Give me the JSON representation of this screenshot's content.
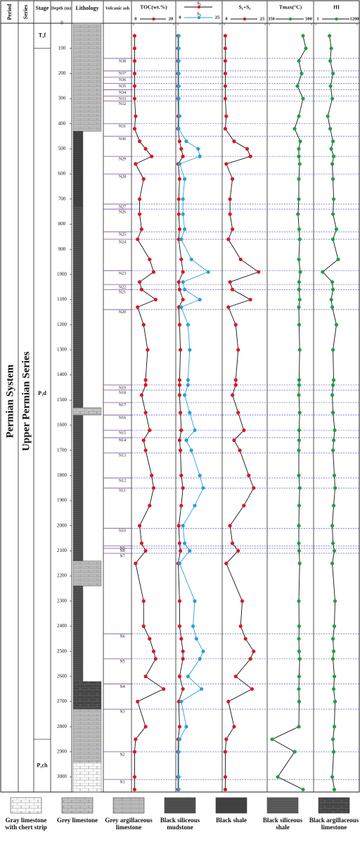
{
  "chart_data": {
    "type": "well-log",
    "headers": {
      "period": "Period",
      "series": "Series",
      "stage": "Stage",
      "depth": "Depth (m)",
      "lithology": "Lithology",
      "ash": "Volcanic ash"
    },
    "period": "Permian System",
    "series_name": "Upper Permian Series",
    "stages": [
      {
        "label": "T₁f",
        "top": 0,
        "base": 100
      },
      {
        "label": "P₃d",
        "top": 100,
        "base": 2850
      },
      {
        "label": "P₃ch",
        "top": 2850,
        "base": 3060
      }
    ],
    "ylim": [
      0,
      3060
    ],
    "yticks": [
      0,
      100,
      200,
      300,
      400,
      500,
      600,
      700,
      800,
      900,
      1000,
      1100,
      1200,
      1300,
      1400,
      1500,
      1600,
      1700,
      1800,
      1900,
      2000,
      2100,
      2200,
      2300,
      2400,
      2500,
      2600,
      2700,
      2800,
      2900,
      3000
    ],
    "lithology": [
      {
        "top": 0,
        "base": 430,
        "name": "Grey argillaceous limestone"
      },
      {
        "top": 430,
        "base": 730,
        "name": "Black shale"
      },
      {
        "top": 730,
        "base": 1530,
        "name": "Black siliceous mudstone"
      },
      {
        "top": 1530,
        "base": 1560,
        "name": "Grey limestone"
      },
      {
        "top": 1560,
        "base": 2140,
        "name": "Black siliceous mudstone"
      },
      {
        "top": 2140,
        "base": 2240,
        "name": "Grey argillaceous limestone"
      },
      {
        "top": 2240,
        "base": 2620,
        "name": "Black siliceous mudstone"
      },
      {
        "top": 2620,
        "base": 2730,
        "name": "Black argillaceous limestone"
      },
      {
        "top": 2730,
        "base": 2940,
        "name": "Grey argillaceous limestone"
      },
      {
        "top": 2940,
        "base": 3060,
        "name": "Gray limestone with chert strip"
      }
    ],
    "ash": [
      {
        "label": "N38",
        "depth": 140
      },
      {
        "label": "N37",
        "depth": 190
      },
      {
        "label": "N36",
        "depth": 215
      },
      {
        "label": "N35",
        "depth": 240
      },
      {
        "label": "N34",
        "depth": 265
      },
      {
        "label": "N33",
        "depth": 290
      },
      {
        "label": "N32",
        "depth": 310
      },
      {
        "label": "N31",
        "depth": 400
      },
      {
        "label": "N30",
        "depth": 450
      },
      {
        "label": "N29",
        "depth": 530
      },
      {
        "label": "N28",
        "depth": 600
      },
      {
        "label": "N27",
        "depth": 720
      },
      {
        "label": "N26",
        "depth": 740
      },
      {
        "label": "N25",
        "depth": 830
      },
      {
        "label": "N24",
        "depth": 860
      },
      {
        "label": "N23",
        "depth": 985
      },
      {
        "label": "N22",
        "depth": 1040
      },
      {
        "label": "N21",
        "depth": 1060
      },
      {
        "label": "N20",
        "depth": 1140
      },
      {
        "label": "N19",
        "depth": 1440
      },
      {
        "label": "N18",
        "depth": 1460
      },
      {
        "label": "N17",
        "depth": 1510
      },
      {
        "label": "N16",
        "depth": 1560
      },
      {
        "label": "N15",
        "depth": 1620
      },
      {
        "label": "N14",
        "depth": 1650
      },
      {
        "label": "N13",
        "depth": 1710
      },
      {
        "label": "N12",
        "depth": 1810
      },
      {
        "label": "N11",
        "depth": 1850
      },
      {
        "label": "N10",
        "depth": 2010
      },
      {
        "label": "N9",
        "depth": 2080
      },
      {
        "label": "N8",
        "depth": 2090
      },
      {
        "label": "N7",
        "depth": 2110
      },
      {
        "label": "N6",
        "depth": 2430
      },
      {
        "label": "N5",
        "depth": 2530
      },
      {
        "label": "N4",
        "depth": 2630
      },
      {
        "label": "N3",
        "depth": 2730
      },
      {
        "label": "N2",
        "depth": 2900
      },
      {
        "label": "N1",
        "depth": 3010
      }
    ],
    "depths": [
      50,
      100,
      150,
      200,
      250,
      300,
      370,
      420,
      470,
      500,
      530,
      560,
      620,
      700,
      760,
      820,
      860,
      940,
      990,
      1030,
      1060,
      1100,
      1130,
      1200,
      1300,
      1420,
      1440,
      1480,
      1550,
      1620,
      1660,
      1700,
      1800,
      1850,
      1920,
      2000,
      2070,
      2100,
      2150,
      2300,
      2400,
      2450,
      2500,
      2530,
      2600,
      2650,
      2700,
      2800,
      2850,
      2900,
      3000,
      3050
    ],
    "panels": [
      {
        "title": "TOC(wt.%)",
        "xlim": [
          0,
          20
        ],
        "xticks": [
          0,
          20
        ],
        "series": [
          {
            "color": "#e0161b",
            "line_color": "#111",
            "values": [
              0.5,
              0.5,
              0.5,
              0.5,
              0.5,
              0.5,
              1,
              0.5,
              3,
              6,
              9,
              1,
              5,
              3,
              3,
              4,
              2,
              8,
              10,
              3,
              4,
              11,
              2,
              5,
              7,
              6,
              6,
              4,
              6,
              8,
              5,
              6,
              9,
              10,
              8,
              3,
              4,
              6,
              1,
              5,
              5,
              8,
              10,
              11,
              6,
              15,
              2,
              6,
              1,
              0.5,
              0.5,
              0.5
            ]
          }
        ]
      },
      {
        "xlim": [
          0,
          25
        ],
        "xticks": [
          0,
          25
        ],
        "series": [
          {
            "name": "S₁",
            "color": "#e0161b",
            "line_color": "#111",
            "values": [
              0.1,
              0.1,
              0.1,
              0.1,
              0.1,
              0.1,
              0.2,
              0.1,
              1,
              2,
              3,
              0.2,
              1,
              0.5,
              0.5,
              1,
              0.5,
              2,
              3,
              0.5,
              1,
              3,
              0.5,
              1,
              1.5,
              1,
              1,
              1,
              1.5,
              2,
              1,
              1.5,
              2,
              3,
              2,
              0.5,
              1,
              1.5,
              0.2,
              1,
              1,
              2,
              3,
              3,
              1,
              3,
              0.5,
              1,
              0.2,
              0.1,
              0.1,
              0.1
            ]
          },
          {
            "name": "S₂",
            "color": "#2a9fd8",
            "line_color": "#2a9fd8",
            "values": [
              0.5,
              0.5,
              0.5,
              0.5,
              0.5,
              0.5,
              1,
              0.5,
              5,
              12,
              13,
              1,
              4,
              3,
              3,
              4,
              2,
              8,
              18,
              3,
              4,
              13,
              2,
              6,
              7,
              6,
              6,
              4,
              7,
              10,
              5,
              8,
              13,
              15,
              10,
              3,
              4,
              7,
              1,
              10,
              9,
              11,
              15,
              13,
              6,
              14,
              2,
              5,
              1,
              0.5,
              0.5,
              0.5
            ]
          }
        ]
      },
      {
        "title": "S₁+S₂",
        "xlim": [
          0,
          25
        ],
        "xticks": [
          0,
          25
        ],
        "series": [
          {
            "color": "#e0161b",
            "line_color": "#111",
            "values": [
              0.6,
              0.6,
              0.6,
              0.6,
              0.6,
              0.6,
              1.2,
              0.6,
              6,
              14,
              16,
              1.2,
              5,
              3.5,
              3.5,
              5,
              2.5,
              10,
              21,
              3.5,
              5,
              16,
              2.5,
              7,
              8.5,
              7,
              7,
              5,
              8.5,
              12,
              6,
              9.5,
              15,
              18,
              12,
              3.5,
              5,
              8.5,
              1.2,
              11,
              10,
              13,
              18,
              16,
              7,
              17,
              2.5,
              6,
              1.2,
              0.6,
              0.6,
              0.6
            ]
          }
        ]
      },
      {
        "title": "Tmax(°C)",
        "xlim": [
          350,
          500
        ],
        "xticks": [
          350,
          500
        ],
        "series": [
          {
            "color": "#1fa23a",
            "line_color": "#111",
            "values": [
              470,
              480,
              455,
              465,
              450,
              470,
              455,
              440,
              460,
              455,
              455,
              458,
              455,
              455,
              452,
              456,
              458,
              455,
              460,
              456,
              456,
              458,
              455,
              456,
              458,
              456,
              456,
              455,
              458,
              456,
              456,
              455,
              455,
              458,
              456,
              455,
              455,
              456,
              458,
              455,
              456,
              455,
              456,
              458,
              456,
              455,
              456,
              455,
              360,
              440,
              380,
              470
            ]
          }
        ]
      },
      {
        "title": "HI",
        "xlim": [
          1,
          1200
        ],
        "xticks": [
          1,
          1200
        ],
        "series": [
          {
            "color": "#1fa23a",
            "line_color": "#111",
            "values": [
              400,
              450,
              420,
              500,
              430,
              480,
              350,
              420,
              500,
              450,
              520,
              480,
              500,
              520,
              500,
              600,
              500,
              650,
              200,
              480,
              500,
              450,
              480,
              600,
              500,
              520,
              500,
              480,
              500,
              550,
              520,
              500,
              540,
              560,
              520,
              480,
              500,
              540,
              480,
              560,
              540,
              500,
              520,
              500,
              540,
              520,
              560,
              540,
              500,
              520,
              480,
              540
            ]
          }
        ]
      }
    ],
    "legend": [
      "Gray limestone with chert strip",
      "Grey limestone",
      "Grey argillaceous limestone",
      "Black siliceous mudstone",
      "Black shale",
      "Black siliceous shale",
      "Black argillaceous limestone"
    ]
  }
}
